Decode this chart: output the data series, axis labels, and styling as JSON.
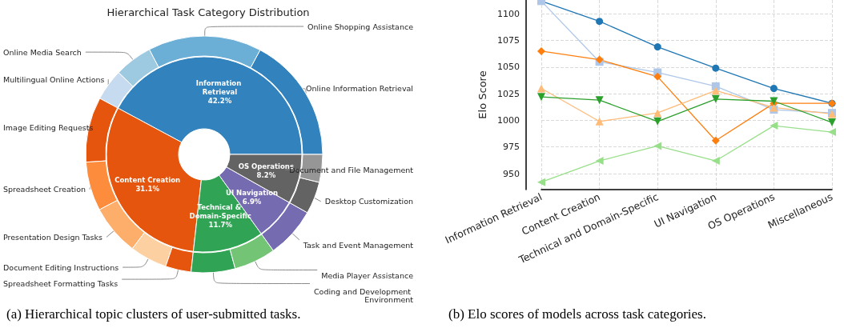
{
  "chart_data": [
    {
      "type": "donut",
      "title": "Hierarchical Task Category Distribution",
      "categories": [
        "Information Retrieval",
        "Content Creation",
        "Technical & Domain-Specific",
        "UI Navigation",
        "OS Operations"
      ],
      "values": [
        42.2,
        31.1,
        11.7,
        6.9,
        8.2
      ],
      "value_labels": [
        "42.2%",
        "31.1%",
        "11.7%",
        "6.9%",
        "8.2%"
      ],
      "colors": [
        "#3182bd",
        "#e6550d",
        "#31a354",
        "#756bb1",
        "#636363"
      ],
      "annotations": [
        "(a) Hierarchical topic clusters of user-submitted tasks."
      ]
    },
    {
      "type": "donut",
      "categories": [
        "Online Information Retrieval",
        "Online Shopping Assistance",
        "Online Media Search",
        "Multilingual Online Actions",
        "Image Editing Requests",
        "Spreadsheet Creation",
        "Presentation Design Tasks",
        "Document Editing Instructions",
        "Spreadsheet Formatting Tasks",
        "Coding and Development Environment",
        "Media Player Assistance",
        "Task and Event Management",
        "Desktop Customization",
        "Document and File Management"
      ],
      "values": [
        17.2,
        15.5,
        5.2,
        4.3,
        8.9,
        6.7,
        6.9,
        5.1,
        3.5,
        6.0,
        5.7,
        6.9,
        4.4,
        3.8
      ],
      "colors": [
        "#3182bd",
        "#6baed6",
        "#9ecae1",
        "#c6dbef",
        "#e6550d",
        "#fd8d3c",
        "#fdae6b",
        "#fdd0a2",
        "#e6550d",
        "#31a354",
        "#74c476",
        "#756bb1",
        "#636363",
        "#969696"
      ]
    },
    {
      "type": "line",
      "ylabel": "Elo Score",
      "categories": [
        "Information Retrieval",
        "Content Creation",
        "Technical and Domain-Specific",
        "UI Navigation",
        "OS Operations",
        "Miscellaneous"
      ],
      "ylim": [
        935,
        1113
      ],
      "yticks": [
        950,
        975,
        1000,
        1025,
        1050,
        1075,
        1100
      ],
      "grid": true,
      "annotations": [
        "(b) Elo scores of models across task categories."
      ],
      "series": [
        {
          "color": "#1f77b4",
          "marker": "circle",
          "values": [
            1112,
            1093,
            1069,
            1049,
            1030,
            1016
          ]
        },
        {
          "color": "#aec7e8",
          "marker": "square",
          "values": [
            1112,
            1055,
            1045,
            1032,
            1010,
            1007
          ]
        },
        {
          "color": "#ff7f0e",
          "marker": "diamond",
          "values": [
            1065,
            1057,
            1041,
            981,
            1016,
            1016
          ]
        },
        {
          "color": "#ffbb78",
          "marker": "triangle",
          "values": [
            1030,
            999,
            1007,
            1028,
            1012,
            1006
          ]
        },
        {
          "color": "#2ca02c",
          "marker": "triangle-down",
          "values": [
            1022,
            1019,
            999,
            1020,
            1018,
            998
          ]
        },
        {
          "color": "#98df8a",
          "marker": "triangle-left",
          "values": [
            942,
            962,
            976,
            962,
            995,
            989
          ]
        }
      ]
    }
  ]
}
